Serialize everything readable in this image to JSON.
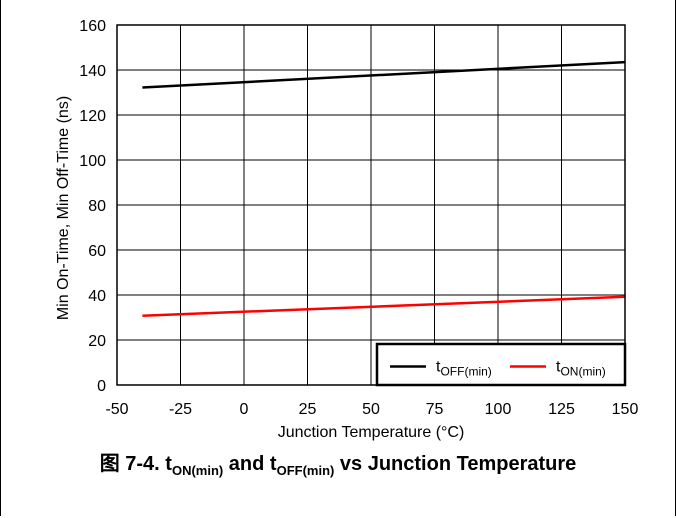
{
  "chart_data": {
    "type": "line",
    "xlabel": "Junction Temperature (°C)",
    "ylabel": "Min On-Time, Min Off-Time (ns)",
    "xlim": [
      -50,
      150
    ],
    "ylim": [
      0,
      160
    ],
    "xticks": [
      -50,
      -25,
      0,
      25,
      50,
      75,
      100,
      125,
      150
    ],
    "yticks": [
      0,
      20,
      40,
      60,
      80,
      100,
      120,
      140,
      160
    ],
    "grid": true,
    "legend_position": "bottom-right",
    "series": [
      {
        "name_main": "t",
        "name_sub": "OFF(min)",
        "color": "#000000",
        "x": [
          -40,
          150
        ],
        "y": [
          132.2,
          143.5
        ]
      },
      {
        "name_main": "t",
        "name_sub": "ON(min)",
        "color": "#ff0000",
        "x": [
          -40,
          150
        ],
        "y": [
          30.8,
          39.2
        ]
      }
    ]
  },
  "caption": {
    "prefix": "图 7-4. t",
    "sub1": "ON(min)",
    "mid": " and t",
    "sub2": "OFF(min)",
    "suffix": " vs Junction Temperature"
  }
}
